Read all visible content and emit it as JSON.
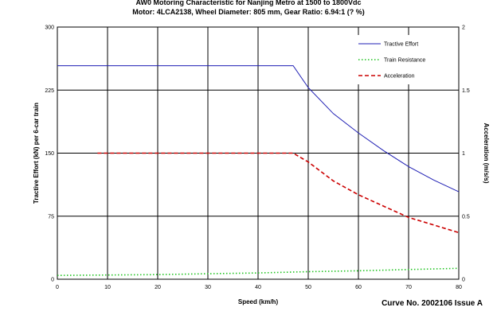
{
  "chart_data": {
    "type": "line",
    "title_lines": [
      "AW0 Motoring Characteristic for Nanjing Metro at 1500 to 1800Vdc",
      "Motor: 4LCA2138, Wheel Diameter: 805 mm, Gear Ratio: 6.94:1 (?  %)"
    ],
    "xlabel": "Speed (km/h)",
    "ylabel_left": "Tractive Effort (kN) per 6-car train",
    "ylabel_right": "Acceleration (m/s/s)",
    "xlim": [
      0,
      80
    ],
    "ylim_left": [
      0,
      300
    ],
    "ylim_right": [
      0,
      2
    ],
    "x_ticks": [
      "0",
      "10",
      "20",
      "30",
      "40",
      "50",
      "60",
      "70",
      "80"
    ],
    "y_left_ticks": [
      "0",
      "75",
      "150",
      "225",
      "300"
    ],
    "y_right_ticks": [
      "0",
      "0.5",
      "1",
      "1.5",
      "2"
    ],
    "grid": true,
    "legend_position": "top-right",
    "series": [
      {
        "name": "Tractive Effort",
        "axis": "left",
        "color": "#1f1fb4",
        "style": "solid",
        "x": [
          0,
          47,
          50,
          55,
          60,
          65,
          70,
          75,
          80
        ],
        "y": [
          254,
          254,
          228,
          197,
          174,
          153,
          134,
          118,
          104
        ]
      },
      {
        "name": "Train Resistance",
        "axis": "left",
        "color": "#22c422",
        "style": "dotted",
        "x": [
          0,
          10,
          20,
          30,
          40,
          50,
          60,
          70,
          80
        ],
        "y": [
          4.5,
          5,
          5.5,
          6.5,
          7.5,
          9,
          10,
          11.5,
          13
        ]
      },
      {
        "name": "Acceleration",
        "axis": "right",
        "color": "#cc0000",
        "style": "dashed",
        "x": [
          8,
          27,
          40,
          47,
          50,
          55,
          60,
          65,
          70,
          75,
          80
        ],
        "y": [
          1.0,
          1.0,
          1.0,
          1.0,
          0.93,
          0.78,
          0.67,
          0.58,
          0.49,
          0.43,
          0.37
        ]
      }
    ],
    "footer": "Curve No. 2002106 Issue A"
  }
}
